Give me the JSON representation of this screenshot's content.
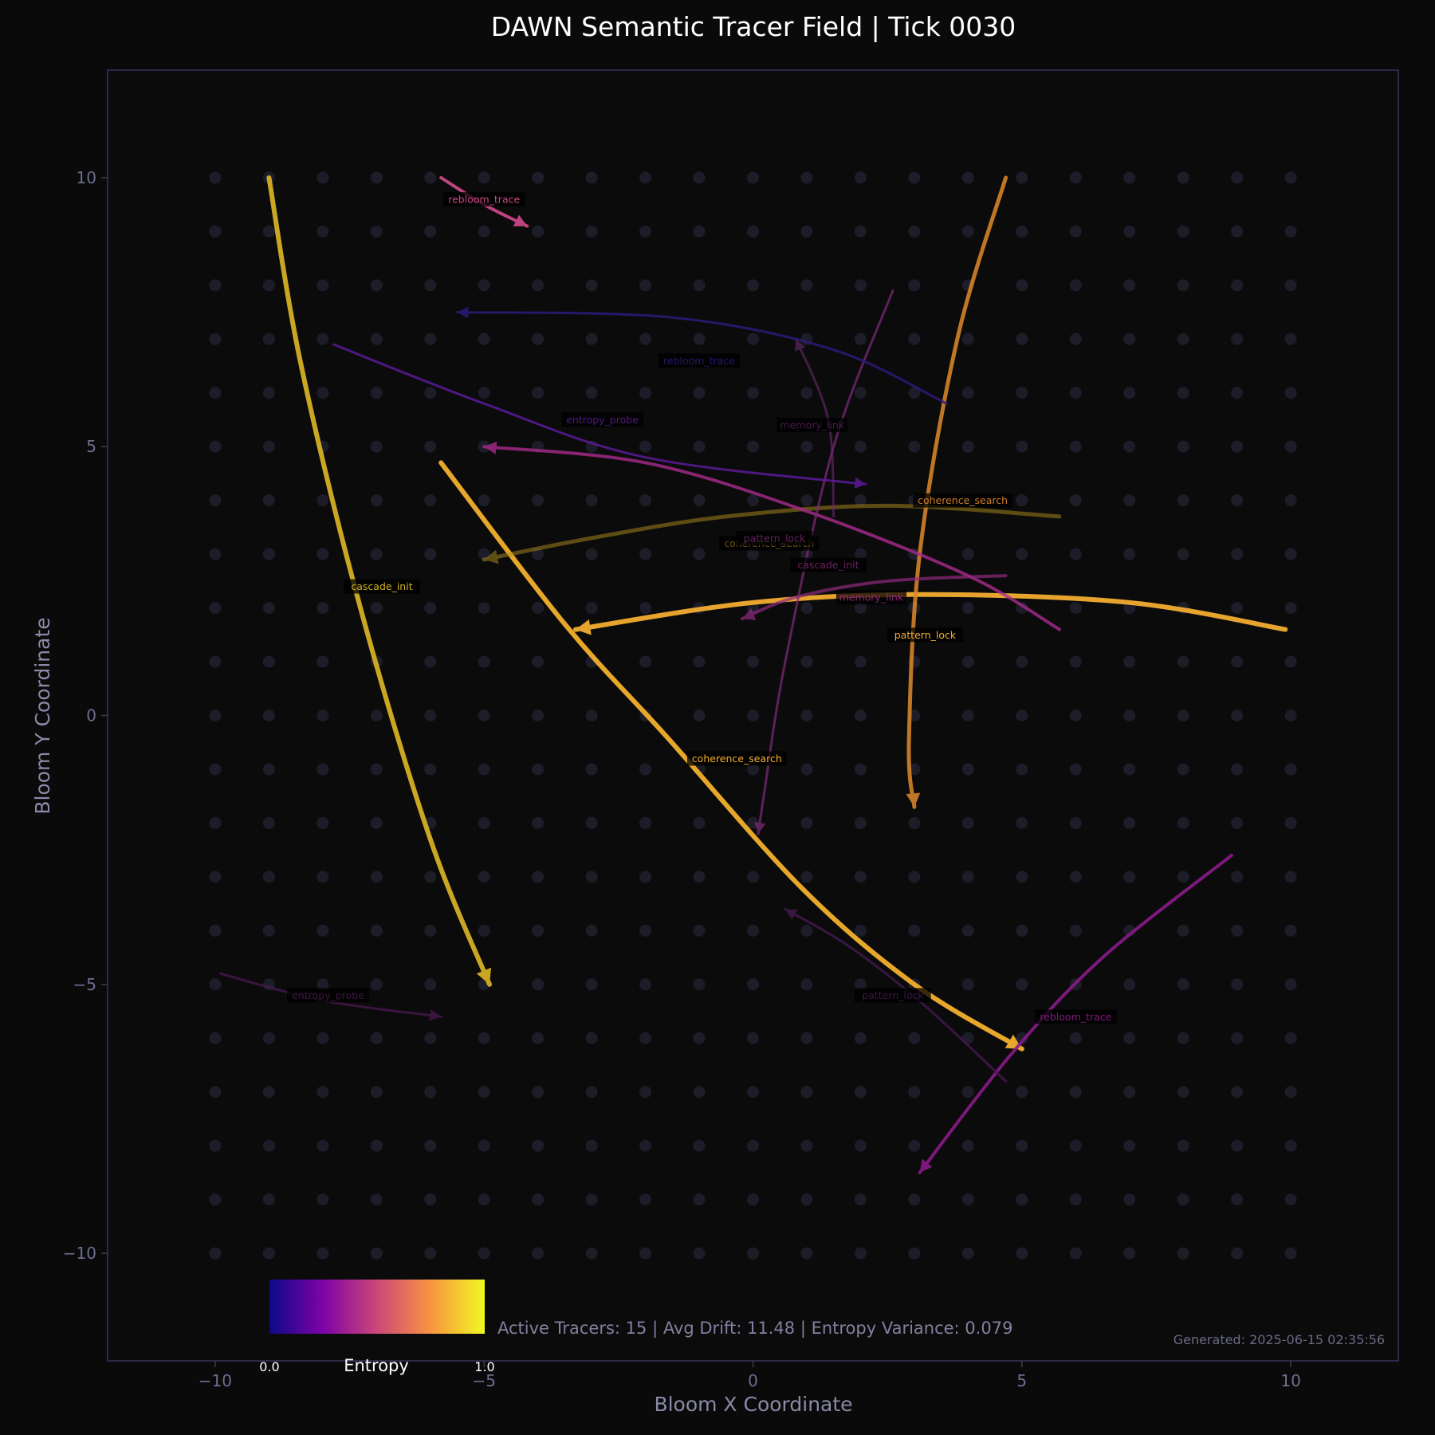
{
  "chart_data": {
    "type": "line",
    "title": "DAWN Semantic Tracer Field | Tick 0030",
    "xlabel": "Bloom X Coordinate",
    "ylabel": "Bloom Y Coordinate",
    "xlim": [
      -12,
      12
    ],
    "ylim": [
      -12,
      12
    ],
    "xticks": [
      -10,
      -5,
      0,
      5,
      10
    ],
    "yticks": [
      -10,
      -5,
      0,
      5,
      10
    ],
    "xtick_labels": [
      "−10",
      "−5",
      "0",
      "5",
      "10"
    ],
    "ytick_labels": [
      "−10",
      "−5",
      "0",
      "5",
      "10"
    ],
    "grid": "dots at integer coordinates from -10 to 10",
    "colormap": {
      "name": "plasma",
      "label": "Entropy",
      "min_label": "0.0",
      "max_label": "1.0",
      "placement": "bottom-left"
    },
    "stats_text": "Active Tracers: 15 | Avg Drift: 11.48 | Entropy Variance: 0.079",
    "generated_text": "Generated: 2025-06-15 02:35:56",
    "series": [
      {
        "name": "cascade_init",
        "entropy": 0.9,
        "color": "#d4b024",
        "opacity": 0.95,
        "width": 6,
        "points": [
          [
            -9,
            10
          ],
          [
            -8.4,
            6.5
          ],
          [
            -7.3,
            2.0
          ],
          [
            -6.0,
            -2.3
          ],
          [
            -4.9,
            -5.0
          ]
        ],
        "label_at": [
          -6.9,
          2.4
        ]
      },
      {
        "name": "coherence_search",
        "entropy": 0.85,
        "color": "#f2b02c",
        "opacity": 0.95,
        "width": 6,
        "points": [
          [
            -5.8,
            4.7
          ],
          [
            -3.5,
            1.7
          ],
          [
            -1.6,
            -0.4
          ],
          [
            0.9,
            -3.2
          ],
          [
            3.0,
            -5.0
          ],
          [
            5.0,
            -6.2
          ]
        ],
        "label_at": [
          -0.3,
          -0.8
        ]
      },
      {
        "name": "pattern_lock",
        "entropy": 0.82,
        "color": "#f2ad30",
        "opacity": 0.95,
        "width": 6,
        "points": [
          [
            9.9,
            1.6
          ],
          [
            7.0,
            2.1
          ],
          [
            3.2,
            2.25
          ],
          [
            0.0,
            2.1
          ],
          [
            -3.3,
            1.6
          ]
        ],
        "label_at": [
          3.2,
          1.5
        ]
      },
      {
        "name": "coherence_search",
        "entropy": 0.78,
        "color": "#e08a2a",
        "opacity": 0.85,
        "width": 5,
        "points": [
          [
            4.7,
            10.0
          ],
          [
            3.8,
            7.0
          ],
          [
            3.1,
            3.0
          ],
          [
            2.9,
            -0.5
          ],
          [
            3.0,
            -1.7
          ]
        ],
        "label_at": [
          3.9,
          4.0
        ]
      },
      {
        "name": "coherence_search",
        "entropy": 0.8,
        "color": "#b08e1c",
        "opacity": 0.5,
        "width": 5,
        "points": [
          [
            5.7,
            3.7
          ],
          [
            2.5,
            3.9
          ],
          [
            -0.5,
            3.7
          ],
          [
            -3.0,
            3.3
          ],
          [
            -5.0,
            2.9
          ]
        ],
        "label_at": [
          0.3,
          3.2
        ]
      },
      {
        "name": "rebloom_trace",
        "entropy": 0.55,
        "color": "#d04a8a",
        "opacity": 0.9,
        "width": 4,
        "points": [
          [
            -5.8,
            10.0
          ],
          [
            -5.0,
            9.5
          ],
          [
            -4.2,
            9.1
          ]
        ],
        "label_at": [
          -5.0,
          9.6
        ]
      },
      {
        "name": "memory_link",
        "entropy": 0.4,
        "color": "#a82a8c",
        "opacity": 0.8,
        "width": 4,
        "points": [
          [
            5.7,
            1.6
          ],
          [
            4.0,
            2.6
          ],
          [
            1.0,
            3.8
          ],
          [
            -2.0,
            4.7
          ],
          [
            -5.0,
            5.0
          ]
        ],
        "label_at": [
          2.2,
          2.2
        ]
      },
      {
        "name": "cascade_init",
        "entropy": 0.4,
        "color": "#8e2a7e",
        "opacity": 0.7,
        "width": 4,
        "points": [
          [
            4.7,
            2.6
          ],
          [
            2.5,
            2.5
          ],
          [
            0.8,
            2.2
          ],
          [
            -0.2,
            1.8
          ]
        ],
        "label_at": [
          1.4,
          2.8
        ]
      },
      {
        "name": "pattern_lock",
        "entropy": 0.42,
        "color": "#7a2a76",
        "opacity": 0.75,
        "width": 3,
        "points": [
          [
            2.6,
            7.9
          ],
          [
            1.5,
            5.0
          ],
          [
            0.6,
            1.0
          ],
          [
            0.2,
            -1.5
          ],
          [
            0.1,
            -2.2
          ]
        ],
        "label_at": [
          0.4,
          3.3
        ]
      },
      {
        "name": "memory_link",
        "entropy": 0.38,
        "color": "#6a2a6e",
        "opacity": 0.6,
        "width": 3,
        "points": [
          [
            1.5,
            3.7
          ],
          [
            1.4,
            5.5
          ],
          [
            0.8,
            7.0
          ]
        ],
        "label_at": [
          1.1,
          5.4
        ]
      },
      {
        "name": "entropy_probe",
        "entropy": 0.2,
        "color": "#5a1a96",
        "opacity": 0.85,
        "width": 3,
        "points": [
          [
            -7.8,
            6.9
          ],
          [
            -5.0,
            5.8
          ],
          [
            -2.0,
            4.8
          ],
          [
            2.1,
            4.3
          ]
        ],
        "label_at": [
          -2.8,
          5.5
        ]
      },
      {
        "name": "rebloom_trace",
        "entropy": 0.08,
        "color": "#2e1a7a",
        "opacity": 0.85,
        "width": 3,
        "points": [
          [
            3.6,
            5.8
          ],
          [
            1.5,
            6.8
          ],
          [
            -1.5,
            7.4
          ],
          [
            -5.5,
            7.5
          ]
        ],
        "label_at": [
          -1.0,
          6.6
        ]
      },
      {
        "name": "rebloom_trace",
        "entropy": 0.45,
        "color": "#8a1a88",
        "opacity": 0.9,
        "width": 4,
        "points": [
          [
            8.9,
            -2.6
          ],
          [
            6.5,
            -4.5
          ],
          [
            4.8,
            -6.3
          ],
          [
            3.1,
            -8.5
          ]
        ],
        "label_at": [
          6.0,
          -5.6
        ]
      },
      {
        "name": "pattern_lock",
        "entropy": 0.35,
        "color": "#4a1a56",
        "opacity": 0.75,
        "width": 3,
        "points": [
          [
            4.7,
            -6.8
          ],
          [
            3.2,
            -5.4
          ],
          [
            1.8,
            -4.3
          ],
          [
            0.6,
            -3.6
          ]
        ],
        "label_at": [
          2.6,
          -5.2
        ]
      },
      {
        "name": "entropy_probe",
        "entropy": 0.35,
        "color": "#4a1a50",
        "opacity": 0.75,
        "width": 3,
        "points": [
          [
            -9.9,
            -4.8
          ],
          [
            -8.0,
            -5.3
          ],
          [
            -5.8,
            -5.6
          ]
        ],
        "label_at": [
          -7.9,
          -5.2
        ]
      }
    ]
  }
}
